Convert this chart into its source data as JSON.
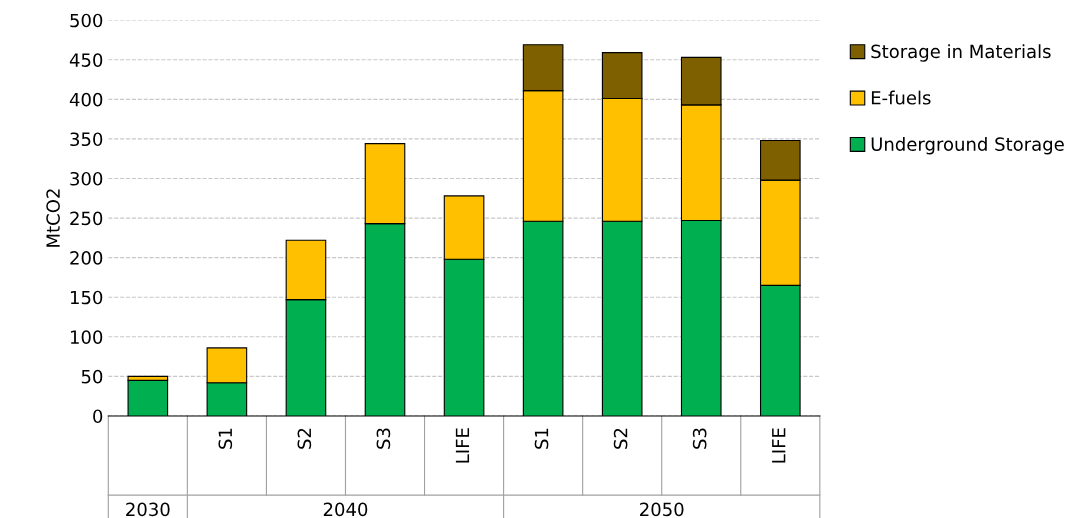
{
  "chart_data": {
    "type": "bar",
    "stacked": true,
    "ylabel": "MtCO2",
    "categories": [
      null,
      "S1",
      "S2",
      "S3",
      "LIFE",
      "S1",
      "S2",
      "S3",
      "LIFE"
    ],
    "annotations": [
      "2030",
      "2040",
      "2050"
    ],
    "series": [
      {
        "name": "Underground Storage",
        "color": "#00b050",
        "values": [
          45,
          42,
          147,
          243,
          198,
          246,
          246,
          247,
          165
        ]
      },
      {
        "name": "E-fuels",
        "color": "#ffc000",
        "values": [
          5,
          44,
          75,
          101,
          80,
          165,
          155,
          146,
          133
        ]
      },
      {
        "name": "Storage in Materials",
        "color": "#7f6000",
        "values": [
          null,
          null,
          null,
          null,
          null,
          58,
          58,
          60,
          50
        ]
      }
    ],
    "ylim": [
      0,
      500
    ],
    "yticks": [
      0,
      50,
      100,
      150,
      200,
      250,
      300,
      350,
      400,
      450,
      500
    ],
    "grid": "y",
    "legend": "right"
  }
}
